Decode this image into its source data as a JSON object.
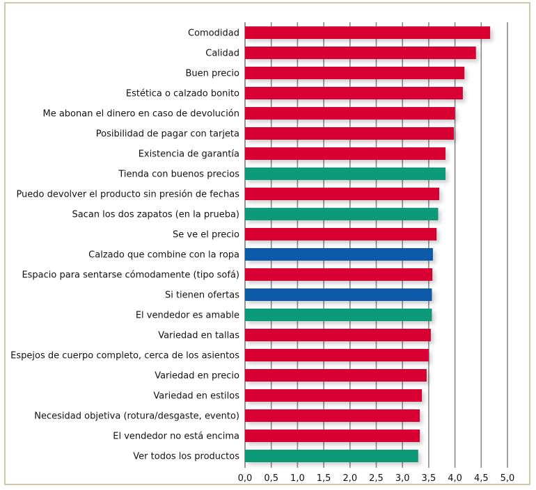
{
  "chart_data": {
    "type": "bar",
    "orientation": "horizontal",
    "title": "",
    "xlabel": "",
    "ylabel": "",
    "xlim": [
      0,
      5
    ],
    "x_ticks": [
      0,
      0.5,
      1,
      1.5,
      2,
      2.5,
      3,
      3.5,
      4,
      4.5,
      5
    ],
    "x_tick_labels": [
      "0,0",
      "0,5",
      "1,0",
      "1,5",
      "2,0",
      "2,5",
      "3,0",
      "3,5",
      "4,0",
      "4,5",
      "5,0"
    ],
    "grid": "vertical",
    "legend": null,
    "colors": {
      "red": "#d80032",
      "green": "#0b9a78",
      "blue": "#0a5aa8",
      "grid": "#8a8a8a",
      "frame": "#cfc9a6"
    },
    "categories": [
      "Comodidad",
      "Calidad",
      "Buen precio",
      "Estética o calzado bonito",
      "Me abonan el dinero en caso de devolución",
      "Posibilidad de pagar con tarjeta",
      "Existencia de garantía",
      "Tienda con buenos precios",
      "Puedo devolver el producto sin presión de fechas",
      "Sacan los dos zapatos (en la prueba)",
      "Se ve el precio",
      "Calzado que combine con la ropa",
      "Espacio para sentarse cómodamente (tipo sofá)",
      "Si tienen ofertas",
      "El vendedor es amable",
      "Variedad en tallas",
      "Espejos de cuerpo completo, cerca de los asientos",
      "Variedad en precio",
      "Variedad en estilos",
      "Necesidad objetiva (rotura/desgaste, evento)",
      "El vendedor no está encima",
      "Ver todos los productos"
    ],
    "values": [
      4.67,
      4.4,
      4.18,
      4.15,
      4.0,
      3.98,
      3.82,
      3.82,
      3.7,
      3.68,
      3.65,
      3.58,
      3.57,
      3.56,
      3.56,
      3.54,
      3.5,
      3.46,
      3.37,
      3.33,
      3.33,
      3.3
    ],
    "bar_colors": [
      "red",
      "red",
      "red",
      "red",
      "red",
      "red",
      "red",
      "green",
      "red",
      "green",
      "red",
      "blue",
      "red",
      "blue",
      "green",
      "red",
      "red",
      "red",
      "red",
      "red",
      "red",
      "green"
    ]
  }
}
